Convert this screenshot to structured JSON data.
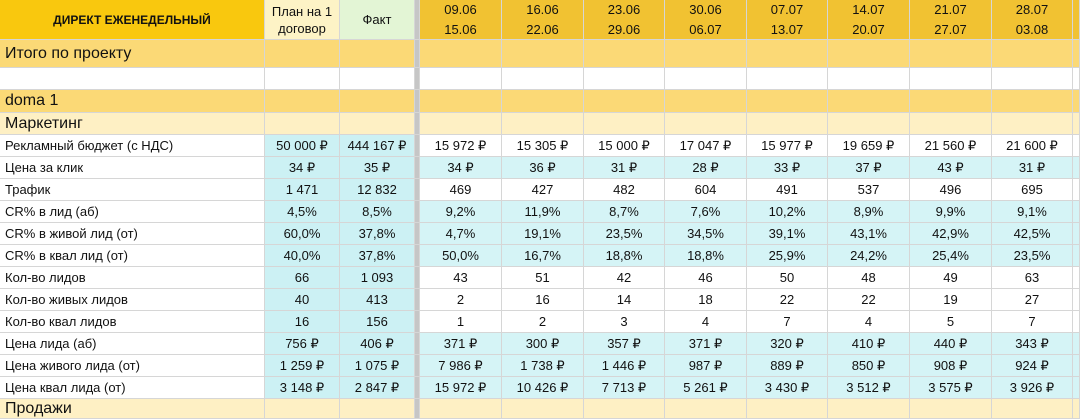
{
  "header": {
    "title": "ДИРЕКТ ЕЖЕНЕДЕЛЬНЫЙ",
    "plan": "План на 1 договор",
    "fact": "Факт",
    "weeks": [
      {
        "from": "09.06",
        "to": "15.06"
      },
      {
        "from": "16.06",
        "to": "22.06"
      },
      {
        "from": "23.06",
        "to": "29.06"
      },
      {
        "from": "30.06",
        "to": "06.07"
      },
      {
        "from": "07.07",
        "to": "13.07"
      },
      {
        "from": "14.07",
        "to": "20.07"
      },
      {
        "from": "21.07",
        "to": "27.07"
      },
      {
        "from": "28.07",
        "to": "03.08"
      }
    ]
  },
  "sections": {
    "total": "Итого по проекту",
    "project": "doma 1",
    "marketing": "Маркетинг",
    "sales": "Продажи"
  },
  "rows": [
    {
      "label": "Рекламный бюджет (с НДС)",
      "plan": "50 000 ₽",
      "fact": "444 167 ₽",
      "values": [
        "15 972 ₽",
        "15 305 ₽",
        "15 000 ₽",
        "17 047 ₽",
        "15 977 ₽",
        "19 659 ₽",
        "21 560 ₽",
        "21 600 ₽"
      ]
    },
    {
      "label": "Цена за клик",
      "plan": "34 ₽",
      "fact": "35 ₽",
      "values": [
        "34 ₽",
        "36 ₽",
        "31 ₽",
        "28 ₽",
        "33 ₽",
        "37 ₽",
        "43 ₽",
        "31 ₽"
      ]
    },
    {
      "label": "Трафик",
      "plan": "1 471",
      "fact": "12 832",
      "values": [
        "469",
        "427",
        "482",
        "604",
        "491",
        "537",
        "496",
        "695"
      ]
    },
    {
      "label": "CR% в лид (аб)",
      "plan": "4,5%",
      "fact": "8,5%",
      "values": [
        "9,2%",
        "11,9%",
        "8,7%",
        "7,6%",
        "10,2%",
        "8,9%",
        "9,9%",
        "9,1%"
      ]
    },
    {
      "label": "CR% в живой лид (от)",
      "plan": "60,0%",
      "fact": "37,8%",
      "values": [
        "4,7%",
        "19,1%",
        "23,5%",
        "34,5%",
        "39,1%",
        "43,1%",
        "42,9%",
        "42,5%"
      ]
    },
    {
      "label": "CR% в квал лид (от)",
      "plan": "40,0%",
      "fact": "37,8%",
      "values": [
        "50,0%",
        "16,7%",
        "18,8%",
        "18,8%",
        "25,9%",
        "24,2%",
        "25,4%",
        "23,5%"
      ]
    },
    {
      "label": "Кол-во лидов",
      "plan": "66",
      "fact": "1 093",
      "values": [
        "43",
        "51",
        "42",
        "46",
        "50",
        "48",
        "49",
        "63"
      ]
    },
    {
      "label": "Кол-во живых лидов",
      "plan": "40",
      "fact": "413",
      "values": [
        "2",
        "16",
        "14",
        "18",
        "22",
        "22",
        "19",
        "27"
      ]
    },
    {
      "label": "Кол-во квал лидов",
      "plan": "16",
      "fact": "156",
      "values": [
        "1",
        "2",
        "3",
        "4",
        "7",
        "4",
        "5",
        "7"
      ]
    },
    {
      "label": "Цена лида (аб)",
      "plan": "756 ₽",
      "fact": "406 ₽",
      "values": [
        "371 ₽",
        "300 ₽",
        "357 ₽",
        "371 ₽",
        "320 ₽",
        "410 ₽",
        "440 ₽",
        "343 ₽"
      ]
    },
    {
      "label": "Цена живого лида (от)",
      "plan": "1 259 ₽",
      "fact": "1 075 ₽",
      "values": [
        "7 986 ₽",
        "1 738 ₽",
        "1 446 ₽",
        "987 ₽",
        "889 ₽",
        "850 ₽",
        "908 ₽",
        "924 ₽"
      ]
    },
    {
      "label": "Цена квал лида (от)",
      "plan": "3 148 ₽",
      "fact": "2 847 ₽",
      "values": [
        "15 972 ₽",
        "10 426 ₽",
        "7 713 ₽",
        "5 261 ₽",
        "3 430 ₽",
        "3 512 ₽",
        "3 575 ₽",
        "3 926 ₽"
      ]
    }
  ]
}
